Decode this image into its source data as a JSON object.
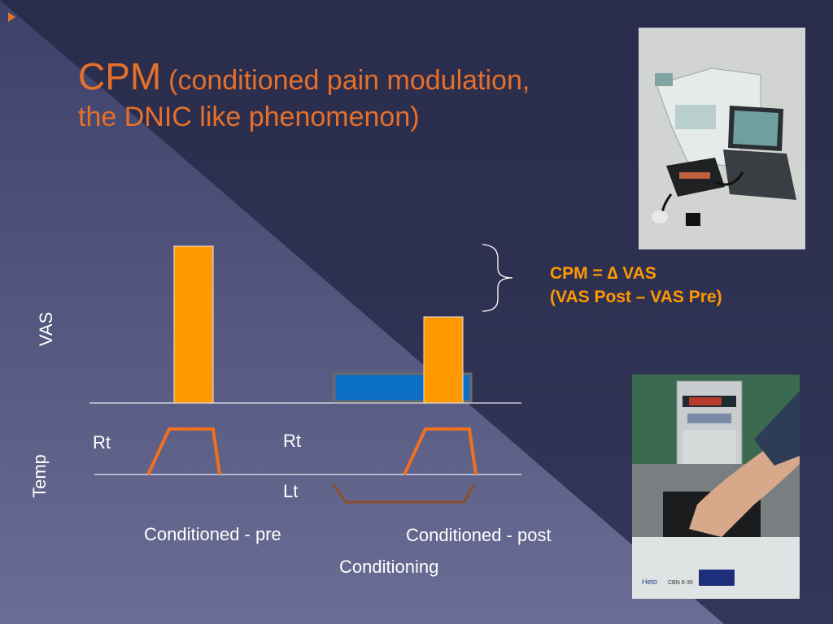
{
  "slide": {
    "title_main": "CPM",
    "title_paren_1": "(conditioned pain modulation,",
    "title_paren_2": "the DNIC like phenomenon)"
  },
  "diagram": {
    "y_axis_vas": "VAS",
    "y_axis_temp": "Temp",
    "rt_left": "Rt",
    "rt_mid": "Rt",
    "lt_mid": "Lt",
    "label_pre": "Conditioned - pre",
    "label_post": "Conditioned - post",
    "label_conditioning": "Conditioning",
    "cpm_line1": "CPM = ∆ VAS",
    "cpm_line2": "(VAS Post – VAS Pre)"
  },
  "photos": {
    "device_photo_text": "",
    "water_bath_label": "Heto",
    "water_bath_model": "CBN 8-30"
  },
  "colors": {
    "accent_orange": "#e5702a",
    "bar_orange": "#ff9900",
    "bar_blue": "#0a6fc4",
    "lt_curve_brown": "#8a4f2a"
  }
}
